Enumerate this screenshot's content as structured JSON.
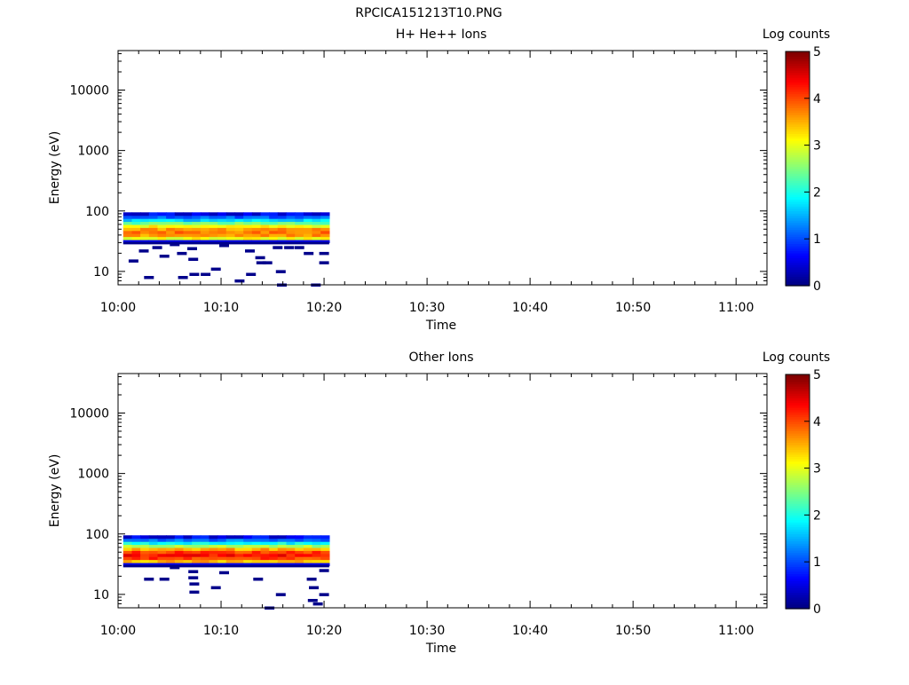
{
  "figure_title": "RPCICA151213T10.PNG",
  "chart_data": [
    {
      "type": "heatmap",
      "title": "H+ He++ Ions",
      "xlabel": "Time",
      "ylabel": "Energy (eV)",
      "x_ticks": [
        "10:00",
        "10:10",
        "10:20",
        "10:30",
        "10:40",
        "10:50",
        "11:00"
      ],
      "x_range_minutes": [
        0,
        63
      ],
      "y_scale": "log",
      "y_ticks": [
        "10",
        "100",
        "1000",
        "10000"
      ],
      "y_range": [
        6,
        45000
      ],
      "colorbar": {
        "label": "Log counts",
        "ticks": [
          "0",
          "1",
          "2",
          "3",
          "4",
          "5"
        ],
        "range": [
          0,
          5
        ],
        "colormap": "jet"
      },
      "data_extent_minutes": [
        0.5,
        20.5
      ],
      "band_energy_eV": [
        30,
        95
      ],
      "peak_energy_eV": 45,
      "peak_log_counts": 3.8,
      "low_energy_sparse_counts": [
        {
          "t": 1.5,
          "e": 15
        },
        {
          "t": 2.5,
          "e": 22
        },
        {
          "t": 3.0,
          "e": 8
        },
        {
          "t": 3.8,
          "e": 25
        },
        {
          "t": 4.5,
          "e": 18
        },
        {
          "t": 5.5,
          "e": 28
        },
        {
          "t": 6.2,
          "e": 20
        },
        {
          "t": 6.3,
          "e": 8
        },
        {
          "t": 7.2,
          "e": 24
        },
        {
          "t": 7.3,
          "e": 16
        },
        {
          "t": 7.4,
          "e": 9
        },
        {
          "t": 8.5,
          "e": 9
        },
        {
          "t": 9.5,
          "e": 11
        },
        {
          "t": 10.3,
          "e": 27
        },
        {
          "t": 11.8,
          "e": 7
        },
        {
          "t": 12.8,
          "e": 22
        },
        {
          "t": 12.9,
          "e": 9
        },
        {
          "t": 13.8,
          "e": 17
        },
        {
          "t": 13.9,
          "e": 14
        },
        {
          "t": 14.5,
          "e": 14
        },
        {
          "t": 15.5,
          "e": 25
        },
        {
          "t": 15.9,
          "e": 6
        },
        {
          "t": 15.8,
          "e": 10
        },
        {
          "t": 16.6,
          "e": 25
        },
        {
          "t": 17.6,
          "e": 25
        },
        {
          "t": 18.5,
          "e": 20
        },
        {
          "t": 19.2,
          "e": 6
        },
        {
          "t": 20.0,
          "e": 14
        },
        {
          "t": 20.0,
          "e": 20
        }
      ]
    },
    {
      "type": "heatmap",
      "title": "Other Ions",
      "xlabel": "Time",
      "ylabel": "Energy (eV)",
      "x_ticks": [
        "10:00",
        "10:10",
        "10:20",
        "10:30",
        "10:40",
        "10:50",
        "11:00"
      ],
      "x_range_minutes": [
        0,
        63
      ],
      "y_scale": "log",
      "y_ticks": [
        "10",
        "100",
        "1000",
        "10000"
      ],
      "y_range": [
        6,
        45000
      ],
      "colorbar": {
        "label": "Log counts",
        "ticks": [
          "0",
          "1",
          "2",
          "3",
          "4",
          "5"
        ],
        "range": [
          0,
          5
        ],
        "colormap": "jet"
      },
      "data_extent_minutes": [
        0.5,
        20.5
      ],
      "band_energy_eV": [
        30,
        95
      ],
      "peak_energy_eV": 45,
      "peak_log_counts": 4.3,
      "low_energy_sparse_counts": [
        {
          "t": 3.0,
          "e": 18
        },
        {
          "t": 4.5,
          "e": 18
        },
        {
          "t": 5.5,
          "e": 28
        },
        {
          "t": 7.3,
          "e": 24
        },
        {
          "t": 7.3,
          "e": 19
        },
        {
          "t": 7.4,
          "e": 15
        },
        {
          "t": 7.4,
          "e": 11
        },
        {
          "t": 9.5,
          "e": 13
        },
        {
          "t": 10.3,
          "e": 23
        },
        {
          "t": 13.6,
          "e": 18
        },
        {
          "t": 14.7,
          "e": 6
        },
        {
          "t": 15.8,
          "e": 10
        },
        {
          "t": 18.8,
          "e": 18
        },
        {
          "t": 18.9,
          "e": 8
        },
        {
          "t": 19.0,
          "e": 13
        },
        {
          "t": 19.4,
          "e": 7
        },
        {
          "t": 20.0,
          "e": 25
        },
        {
          "t": 20.0,
          "e": 10
        }
      ]
    }
  ]
}
